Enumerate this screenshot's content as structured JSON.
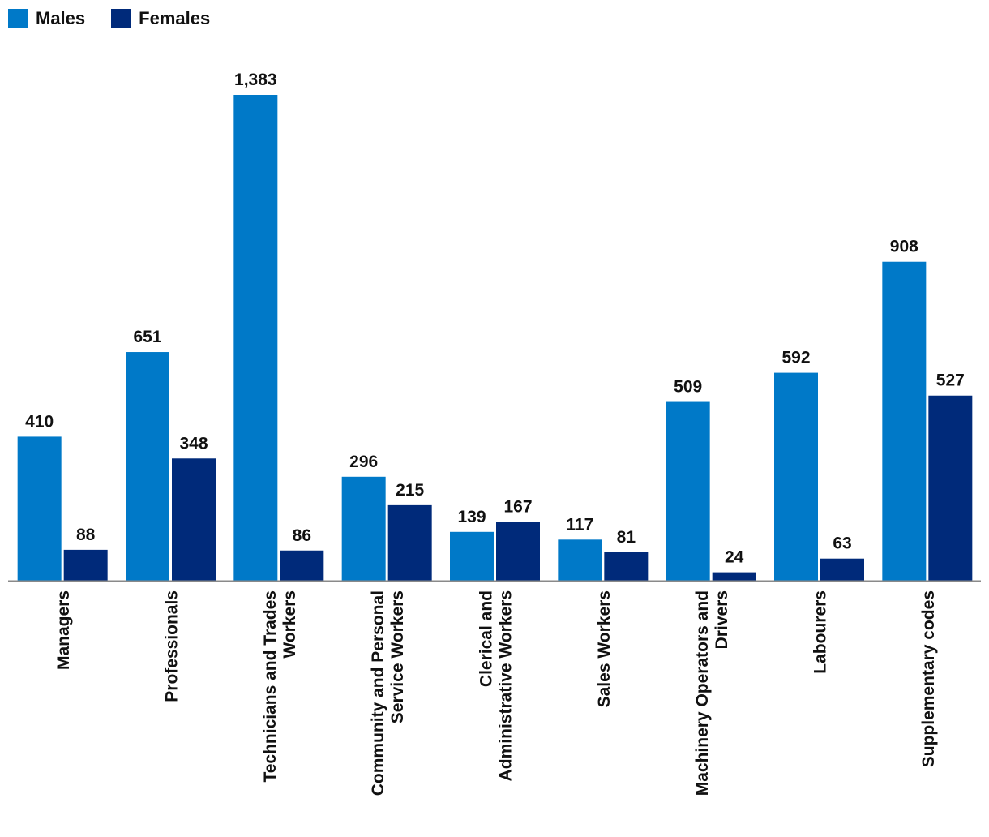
{
  "chart_data": {
    "type": "bar",
    "title": "",
    "xlabel": "",
    "ylabel": "",
    "ylim": [
      0,
      1383
    ],
    "grid": false,
    "legend_position": "top-left",
    "categories": [
      [
        "Managers"
      ],
      [
        "Professionals"
      ],
      [
        "Technicians and Trades",
        "Workers"
      ],
      [
        "Community and Personal",
        "Service Workers"
      ],
      [
        "Clerical and",
        "Administrative Workers"
      ],
      [
        "Sales Workers"
      ],
      [
        "Machinery Operators and",
        "Drivers"
      ],
      [
        "Labourers"
      ],
      [
        "Supplementary codes"
      ]
    ],
    "series": [
      {
        "name": "Males",
        "color": "#0079c8",
        "values": [
          410,
          651,
          1383,
          296,
          139,
          117,
          509,
          592,
          908
        ],
        "labels": [
          "410",
          "651",
          "1,383",
          "296",
          "139",
          "117",
          "509",
          "592",
          "908"
        ]
      },
      {
        "name": "Females",
        "color": "#002a7a",
        "values": [
          88,
          348,
          86,
          215,
          167,
          81,
          24,
          63,
          527
        ],
        "labels": [
          "88",
          "348",
          "86",
          "215",
          "167",
          "81",
          "24",
          "63",
          "527"
        ]
      }
    ]
  }
}
